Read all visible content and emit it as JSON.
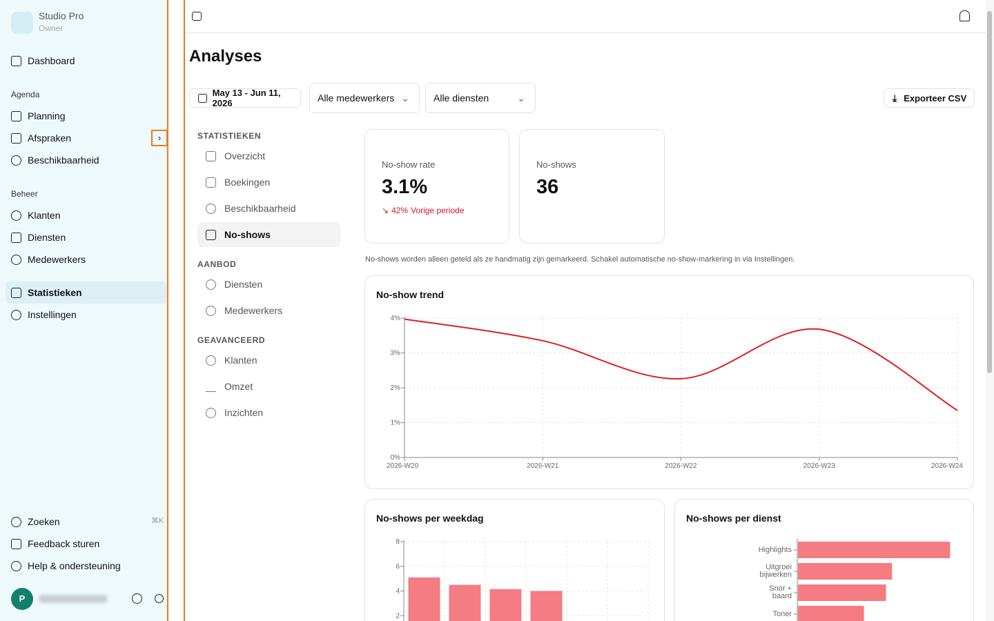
{
  "sidebar": {
    "brand": "Studio Pro",
    "role": "Owner",
    "top": [
      "Dashboard"
    ],
    "groups": [
      {
        "title": "Agenda",
        "items": [
          "Planning",
          "Afspraken",
          "Beschikbaarheid"
        ]
      },
      {
        "title": "Beheer",
        "items": [
          "Klanten",
          "Diensten",
          "Medewerkers"
        ]
      }
    ],
    "bottom_nav": [
      "Statistieken",
      "Instellingen"
    ],
    "search": "Zoeken",
    "shortcut": "⌘K",
    "footer": [
      "Feedback sturen",
      "Help & ondersteuning"
    ],
    "avatar": "P"
  },
  "page": {
    "title": "Analyses",
    "date_range": "May 13 - Jun 11, 2026",
    "staff_filter": "Alle medewerkers",
    "service_filter": "Alle diensten",
    "export": "Exporteer CSV"
  },
  "subnav": [
    {
      "title": "STATISTIEKEN",
      "items": [
        "Overzicht",
        "Boekingen",
        "Beschikbaarheid",
        "No-shows"
      ]
    },
    {
      "title": "AANBOD",
      "items": [
        "Diensten",
        "Medewerkers"
      ]
    },
    {
      "title": "GEAVANCEERD",
      "items": [
        "Klanten",
        "Omzet",
        "Inzichten"
      ]
    }
  ],
  "kpis": [
    {
      "label": "No-show rate",
      "value": "3.1%",
      "change": "42%",
      "change_label": "Vorige periode"
    },
    {
      "label": "No-shows",
      "value": "36"
    }
  ],
  "note": "No-shows worden alleen geteld als ze handmatig zijn gemarkeerd. Schakel automatische no-show-markering in via Instellingen.",
  "chart_data": [
    {
      "type": "line",
      "title": "No-show trend",
      "categories": [
        "2026-W20",
        "2026-W21",
        "2026-W22",
        "2026-W23",
        "2026-W24"
      ],
      "values": [
        3.97,
        3.35,
        2.26,
        3.68,
        1.35
      ],
      "color": "#dc1f1f",
      "ylim": [
        0,
        4
      ],
      "yticks": [
        {
          "value": 0,
          "label": "0%"
        },
        {
          "value": 1,
          "label": "1%"
        },
        {
          "value": 2,
          "label": "2%"
        },
        {
          "value": 3,
          "label": "3%"
        },
        {
          "value": 4,
          "label": "4%"
        }
      ],
      "grid": true
    },
    {
      "type": "bar",
      "title": "No-shows per weekdag",
      "categories": [
        null,
        null,
        null,
        null,
        null,
        null
      ],
      "values": [
        5.1,
        4.5,
        4.15,
        4.0,
        0,
        0
      ],
      "color": "#f47c82",
      "ylim": [
        0,
        8
      ],
      "yticks": [
        2,
        4,
        6,
        8
      ],
      "grid": true
    },
    {
      "type": "hbar",
      "title": "No-shows per dienst",
      "categories": [
        "Highlights",
        "Uitgroei bijwerken",
        "Snor + baard",
        "Toner"
      ],
      "values": [
        7.6,
        4.7,
        4.4,
        3.3
      ],
      "color": "#f47c82",
      "xlim": [
        0,
        8
      ]
    }
  ]
}
